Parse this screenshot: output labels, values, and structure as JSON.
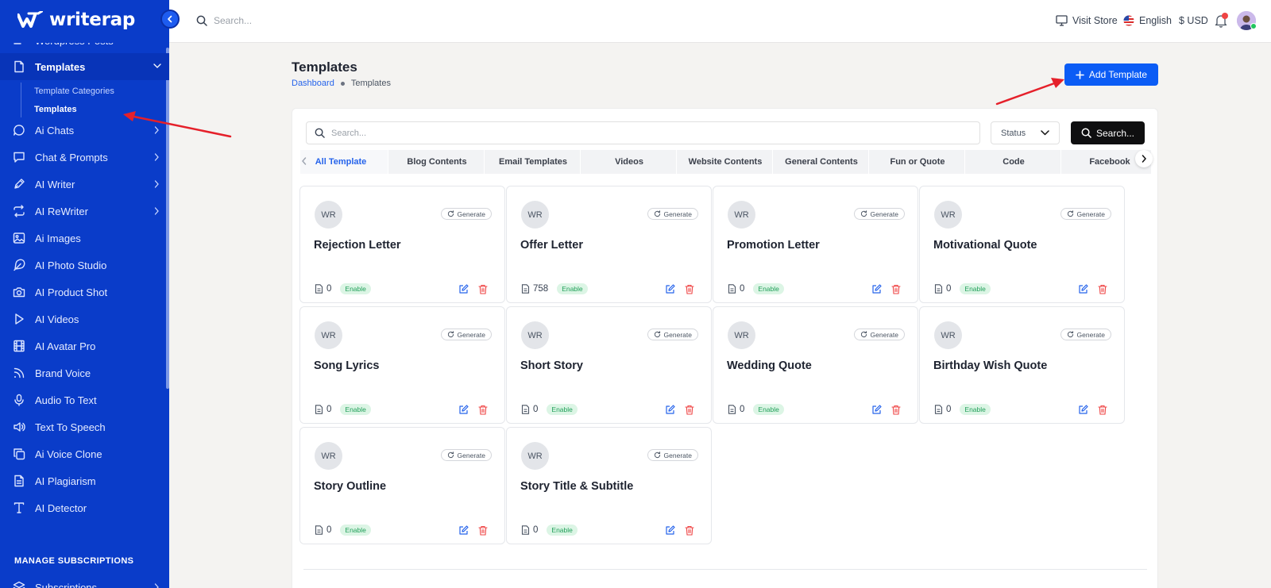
{
  "brand": {
    "name": "writerap"
  },
  "sidebar": {
    "items": [
      {
        "key": "wp",
        "label": "Wordpress Posts",
        "icon": "list-icon",
        "chevron": false
      },
      {
        "key": "templates",
        "label": "Templates",
        "icon": "file-icon",
        "chevron": true,
        "active": true
      },
      {
        "key": "ai-chats",
        "label": "Ai Chats",
        "icon": "chat-bubble-icon",
        "chevron": true
      },
      {
        "key": "chat-prompts",
        "label": "Chat & Prompts",
        "icon": "message-square-icon",
        "chevron": true
      },
      {
        "key": "ai-writer",
        "label": "AI Writer",
        "icon": "pen-icon",
        "chevron": true
      },
      {
        "key": "ai-rewriter",
        "label": "AI ReWriter",
        "icon": "repeat-icon",
        "chevron": true
      },
      {
        "key": "ai-images",
        "label": "Ai Images",
        "icon": "image-icon",
        "chevron": false
      },
      {
        "key": "ai-photo-studio",
        "label": "AI Photo Studio",
        "icon": "feather-icon",
        "chevron": false
      },
      {
        "key": "ai-product-shot",
        "label": "AI Product Shot",
        "icon": "camera-icon",
        "chevron": false
      },
      {
        "key": "ai-videos",
        "label": "AI Videos",
        "icon": "play-icon",
        "chevron": false
      },
      {
        "key": "ai-avatar-pro",
        "label": "AI Avatar Pro",
        "icon": "film-icon",
        "chevron": false
      },
      {
        "key": "brand-voice",
        "label": "Brand Voice",
        "icon": "rss-icon",
        "chevron": false
      },
      {
        "key": "audio-to-text",
        "label": "Audio To Text",
        "icon": "microphone-icon",
        "chevron": false
      },
      {
        "key": "text-to-speech",
        "label": "Text To Speech",
        "icon": "speaker-icon",
        "chevron": false
      },
      {
        "key": "ai-voice-clone",
        "label": "Ai Voice Clone",
        "icon": "copy-icon",
        "chevron": false
      },
      {
        "key": "ai-plagiarism",
        "label": "AI Plagiarism",
        "icon": "document-icon",
        "chevron": false
      },
      {
        "key": "ai-detector",
        "label": "AI Detector",
        "icon": "type-icon",
        "chevron": false
      },
      {
        "key": "subscriptions",
        "label": "Subscriptions",
        "icon": "layers-icon",
        "chevron": true
      }
    ],
    "subitems": [
      {
        "label": "Template Categories"
      },
      {
        "label": "Templates",
        "current": true
      }
    ],
    "section_label": "MANAGE SUBSCRIPTIONS"
  },
  "topbar": {
    "search_placeholder": "Search...",
    "visit_store": "Visit Store",
    "language": "English",
    "currency": "$ USD"
  },
  "page": {
    "title": "Templates",
    "breadcrumb": {
      "home": "Dashboard",
      "current": "Templates"
    },
    "add_button": "Add Template"
  },
  "filters": {
    "search_placeholder": "Search...",
    "status_label": "Status",
    "search_button": "Search..."
  },
  "tabs": [
    {
      "label": "All Template",
      "active": true
    },
    {
      "label": "Blog Contents"
    },
    {
      "label": "Email Templates"
    },
    {
      "label": "Videos"
    },
    {
      "label": "Website Contents"
    },
    {
      "label": "General Contents"
    },
    {
      "label": "Fun or Quote"
    },
    {
      "label": "Code"
    },
    {
      "label": "Facebook"
    }
  ],
  "cards": [
    {
      "initials": "WR",
      "generate": "Generate",
      "title": "Rejection Letter",
      "count": "0",
      "status": "Enable"
    },
    {
      "initials": "WR",
      "generate": "Generate",
      "title": "Offer Letter",
      "count": "758",
      "status": "Enable"
    },
    {
      "initials": "WR",
      "generate": "Generate",
      "title": "Promotion Letter",
      "count": "0",
      "status": "Enable"
    },
    {
      "initials": "WR",
      "generate": "Generate",
      "title": "Motivational Quote",
      "count": "0",
      "status": "Enable"
    },
    {
      "initials": "WR",
      "generate": "Generate",
      "title": "Song Lyrics",
      "count": "0",
      "status": "Enable"
    },
    {
      "initials": "WR",
      "generate": "Generate",
      "title": "Short Story",
      "count": "0",
      "status": "Enable"
    },
    {
      "initials": "WR",
      "generate": "Generate",
      "title": "Wedding Quote",
      "count": "0",
      "status": "Enable"
    },
    {
      "initials": "WR",
      "generate": "Generate",
      "title": "Birthday Wish Quote",
      "count": "0",
      "status": "Enable"
    },
    {
      "initials": "WR",
      "generate": "Generate",
      "title": "Story Outline",
      "count": "0",
      "status": "Enable"
    },
    {
      "initials": "WR",
      "generate": "Generate",
      "title": "Story Title & Subtitle",
      "count": "0",
      "status": "Enable"
    }
  ],
  "colors": {
    "sidebar_bg": "#0a3cc9",
    "primary": "#0b5cf5",
    "enable_bg": "#dcf5e5",
    "enable_text": "#22a05a",
    "delete": "#ef4444",
    "annotation_arrow": "#e5202a"
  }
}
